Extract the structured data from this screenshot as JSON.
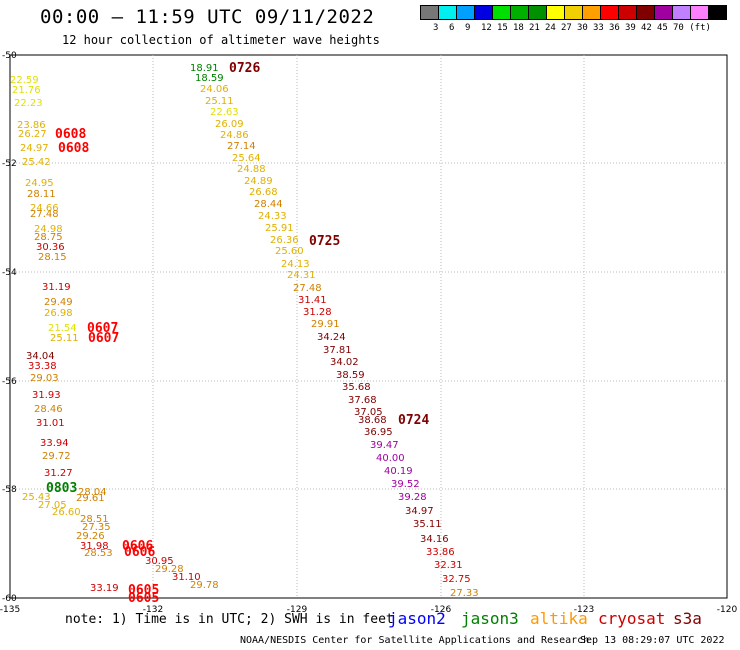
{
  "header": {
    "title": "00:00 – 11:59 UTC 09/11/2022",
    "subtitle": "12 hour collection of altimeter wave heights"
  },
  "legend": {
    "colors": [
      "#777777",
      "#00f0f0",
      "#00a0ff",
      "#0000e0",
      "#00e000",
      "#00b000",
      "#009000",
      "#ffff00",
      "#f0d000",
      "#ffa000",
      "#ff0000",
      "#cc0000",
      "#800000",
      "#a000a0",
      "#c080ff",
      "#ff80ff",
      "#000000"
    ],
    "labels": [
      "3",
      "6",
      "9",
      "12",
      "15",
      "18",
      "21",
      "24",
      "27",
      "30",
      "33",
      "36",
      "39",
      "42",
      "45",
      "70 (ft)"
    ]
  },
  "axes": {
    "x_ticks": [
      "-135",
      "-132",
      "-129",
      "-126",
      "-123",
      "-120"
    ],
    "y_ticks": [
      "-50",
      "-52",
      "-54",
      "-56",
      "-58",
      "-60"
    ]
  },
  "track_labels": [
    {
      "text": "0726",
      "color": "#800000"
    },
    {
      "text": "0608",
      "color": "#ff0000"
    },
    {
      "text": "0608",
      "color": "#ff0000"
    },
    {
      "text": "0725",
      "color": "#800000"
    },
    {
      "text": "0607",
      "color": "#ff0000"
    },
    {
      "text": "0607",
      "color": "#ff0000"
    },
    {
      "text": "0724",
      "color": "#800000"
    },
    {
      "text": "0803",
      "color": "#008000"
    },
    {
      "text": "0606",
      "color": "#ff0000"
    },
    {
      "text": "0606",
      "color": "#ff0000"
    },
    {
      "text": "0605",
      "color": "#ff0000"
    },
    {
      "text": "0605",
      "color": "#ff0000"
    }
  ],
  "observations": [
    {
      "t": "18.91",
      "c": "#008000"
    },
    {
      "t": "18.59",
      "c": "#008000"
    },
    {
      "t": "24.06",
      "c": "#e0b000"
    },
    {
      "t": "25.11",
      "c": "#e0b000"
    },
    {
      "t": "22.63",
      "c": "#e0e000"
    },
    {
      "t": "26.09",
      "c": "#e0b000"
    },
    {
      "t": "24.86",
      "c": "#e0b000"
    },
    {
      "t": "27.14",
      "c": "#d08000"
    },
    {
      "t": "25.64",
      "c": "#e0b000"
    },
    {
      "t": "24.88",
      "c": "#e0b000"
    },
    {
      "t": "24.89",
      "c": "#e0b000"
    },
    {
      "t": "26.68",
      "c": "#e0b000"
    },
    {
      "t": "28.44",
      "c": "#d08000"
    },
    {
      "t": "24.33",
      "c": "#e0b000"
    },
    {
      "t": "25.91",
      "c": "#e0b000"
    },
    {
      "t": "26.36",
      "c": "#e0b000"
    },
    {
      "t": "25.60",
      "c": "#e0b000"
    },
    {
      "t": "24.13",
      "c": "#e0b000"
    },
    {
      "t": "24.31",
      "c": "#e0b000"
    },
    {
      "t": "27.48",
      "c": "#d08000"
    },
    {
      "t": "31.41",
      "c": "#cc0000"
    },
    {
      "t": "31.28",
      "c": "#cc0000"
    },
    {
      "t": "29.91",
      "c": "#d08000"
    },
    {
      "t": "34.24",
      "c": "#800000"
    },
    {
      "t": "37.81",
      "c": "#800000"
    },
    {
      "t": "34.02",
      "c": "#800000"
    },
    {
      "t": "38.59",
      "c": "#800000"
    },
    {
      "t": "35.68",
      "c": "#800000"
    },
    {
      "t": "37.68",
      "c": "#800000"
    },
    {
      "t": "37.05",
      "c": "#800000"
    },
    {
      "t": "38.68",
      "c": "#800000"
    },
    {
      "t": "36.95",
      "c": "#800000"
    },
    {
      "t": "39.47",
      "c": "#a000a0"
    },
    {
      "t": "40.00",
      "c": "#a000a0"
    },
    {
      "t": "40.19",
      "c": "#a000a0"
    },
    {
      "t": "39.52",
      "c": "#a000a0"
    },
    {
      "t": "39.28",
      "c": "#a000a0"
    },
    {
      "t": "34.97",
      "c": "#800000"
    },
    {
      "t": "35.11",
      "c": "#800000"
    },
    {
      "t": "34.16",
      "c": "#800000"
    },
    {
      "t": "33.86",
      "c": "#cc0000"
    },
    {
      "t": "32.31",
      "c": "#cc0000"
    },
    {
      "t": "32.75",
      "c": "#cc0000"
    },
    {
      "t": "27.33",
      "c": "#d08000"
    },
    {
      "t": "22.59",
      "c": "#e0e000"
    },
    {
      "t": "21.76",
      "c": "#e0e000"
    },
    {
      "t": "22.23",
      "c": "#e0e000"
    },
    {
      "t": "23.86",
      "c": "#e0b000"
    },
    {
      "t": "26.27",
      "c": "#e0b000"
    },
    {
      "t": "24.97",
      "c": "#e0b000"
    },
    {
      "t": "25.42",
      "c": "#e0b000"
    },
    {
      "t": "24.95",
      "c": "#e0b000"
    },
    {
      "t": "28.11",
      "c": "#d08000"
    },
    {
      "t": "24.66",
      "c": "#e0b000"
    },
    {
      "t": "27.48",
      "c": "#d08000"
    },
    {
      "t": "24.98",
      "c": "#e0b000"
    },
    {
      "t": "28.75",
      "c": "#d08000"
    },
    {
      "t": "30.36",
      "c": "#cc0000"
    },
    {
      "t": "28.15",
      "c": "#d08000"
    },
    {
      "t": "31.19",
      "c": "#cc0000"
    },
    {
      "t": "29.49",
      "c": "#d08000"
    },
    {
      "t": "26.98",
      "c": "#e0b000"
    },
    {
      "t": "21.54",
      "c": "#e0e000"
    },
    {
      "t": "25.11",
      "c": "#e0b000"
    },
    {
      "t": "34.04",
      "c": "#800000"
    },
    {
      "t": "33.38",
      "c": "#cc0000"
    },
    {
      "t": "29.03",
      "c": "#d08000"
    },
    {
      "t": "31.93",
      "c": "#cc0000"
    },
    {
      "t": "28.46",
      "c": "#d08000"
    },
    {
      "t": "31.01",
      "c": "#cc0000"
    },
    {
      "t": "33.94",
      "c": "#cc0000"
    },
    {
      "t": "29.72",
      "c": "#d08000"
    },
    {
      "t": "31.27",
      "c": "#cc0000"
    },
    {
      "t": "25.43",
      "c": "#e0b000"
    },
    {
      "t": "27.05",
      "c": "#e0b000"
    },
    {
      "t": "28.04",
      "c": "#d08000"
    },
    {
      "t": "29.61",
      "c": "#d08000"
    },
    {
      "t": "26.60",
      "c": "#e0b000"
    },
    {
      "t": "28.51",
      "c": "#d08000"
    },
    {
      "t": "27.35",
      "c": "#d08000"
    },
    {
      "t": "29.26",
      "c": "#d08000"
    },
    {
      "t": "31.98",
      "c": "#cc0000"
    },
    {
      "t": "28.53",
      "c": "#d08000"
    },
    {
      "t": "30.95",
      "c": "#cc0000"
    },
    {
      "t": "29.28",
      "c": "#d08000"
    },
    {
      "t": "31.10",
      "c": "#cc0000"
    },
    {
      "t": "29.78",
      "c": "#d08000"
    },
    {
      "t": "33.19",
      "c": "#cc0000"
    },
    {
      "t": "28.36",
      "c": "#d08000"
    }
  ],
  "footer": {
    "note": "note: 1) Time is in UTC; 2) SWH is in feet",
    "satellites": [
      {
        "name": "jason2",
        "color": "#0000ff"
      },
      {
        "name": "jason3",
        "color": "#008000"
      },
      {
        "name": "altika",
        "color": "#ff9900"
      },
      {
        "name": "cryosat",
        "color": "#cc0000"
      },
      {
        "name": "s3a",
        "color": "#800000"
      }
    ],
    "credit": "NOAA/NESDIS Center for Satellite Applications and Research",
    "timestamp": "Sep 13 08:29:07 UTC 2022"
  }
}
